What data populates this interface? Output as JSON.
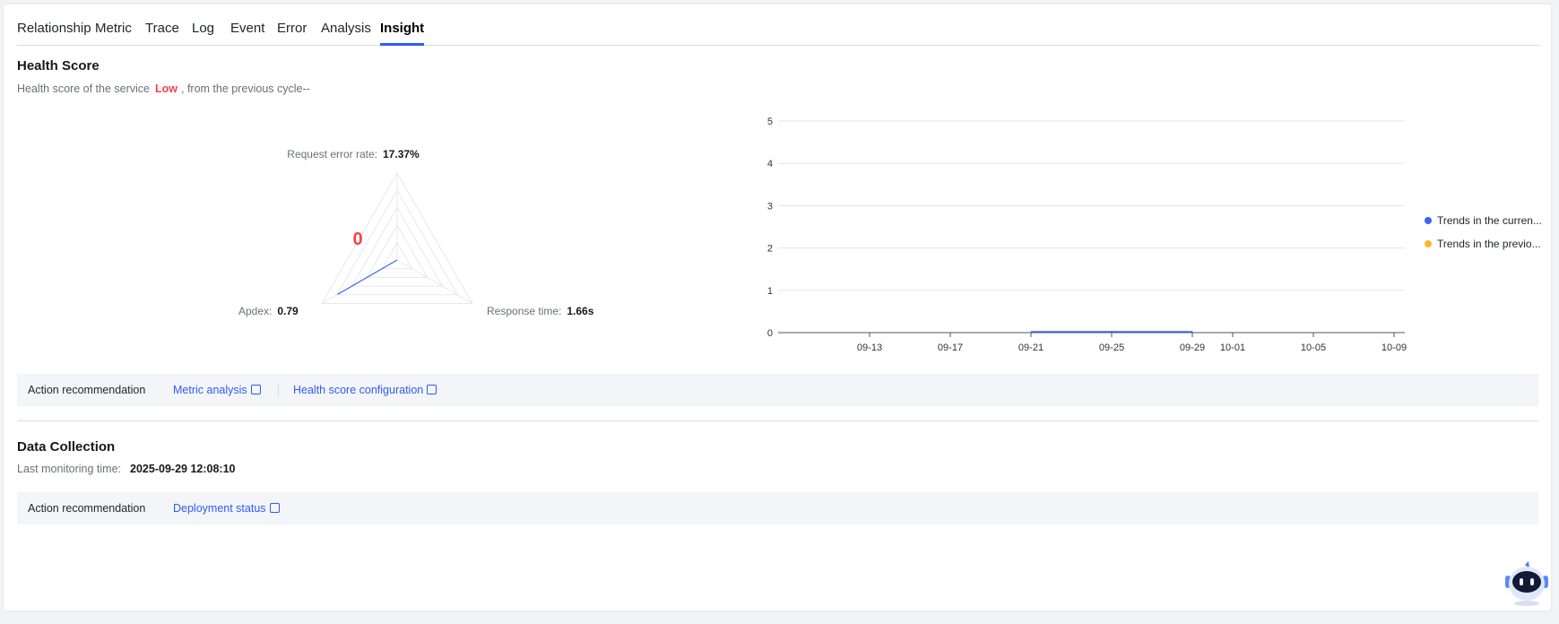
{
  "tabs": [
    {
      "label": "Relationship"
    },
    {
      "label": "Metric"
    },
    {
      "label": "Trace"
    },
    {
      "label": "Log"
    },
    {
      "label": "Event"
    },
    {
      "label": "Error"
    },
    {
      "label": "Analysis"
    },
    {
      "label": "Insight",
      "active": true
    }
  ],
  "health": {
    "title": "Health Score",
    "subtitle_prefix": "Health score of the service",
    "level": "Low",
    "subtitle_suffix": ", from the previous cycle--",
    "score": "0",
    "radar": {
      "axes": [
        {
          "label": "Request error rate:",
          "value": "17.37%",
          "score": 0
        },
        {
          "label": "Response time:",
          "value": "1.66s",
          "score": 0
        },
        {
          "label": "Apdex:",
          "value": "0.79",
          "score": 0.79
        }
      ]
    },
    "actions": {
      "label": "Action recommendation",
      "links": [
        "Metric analysis",
        "Health score configuration"
      ]
    }
  },
  "chart_data": {
    "type": "line",
    "ylim": [
      0,
      5
    ],
    "yticks": [
      "0",
      "1",
      "2",
      "3",
      "4",
      "5"
    ],
    "xticks": [
      "09-13",
      "09-17",
      "09-21",
      "09-25",
      "09-29",
      "10-01",
      "10-05",
      "10-09"
    ],
    "grid": true,
    "legend": "right",
    "series": [
      {
        "name": "Trends in the curren...",
        "color": "#3d63f5",
        "x": [
          "09-21",
          "09-22",
          "09-23",
          "09-24",
          "09-25",
          "09-26",
          "09-27",
          "09-28",
          "09-29"
        ],
        "values": [
          0,
          0,
          0,
          0,
          0,
          0,
          0,
          0,
          0
        ]
      },
      {
        "name": "Trends in the previo...",
        "color": "#fbb829",
        "x": [],
        "values": []
      }
    ]
  },
  "collection": {
    "title": "Data Collection",
    "last_label": "Last monitoring time:",
    "last_value": "2025-09-29 12:08:10",
    "actions": {
      "label": "Action recommendation",
      "links": [
        "Deployment status"
      ]
    }
  },
  "assistant": {
    "icon": "robot-assistant-icon"
  }
}
